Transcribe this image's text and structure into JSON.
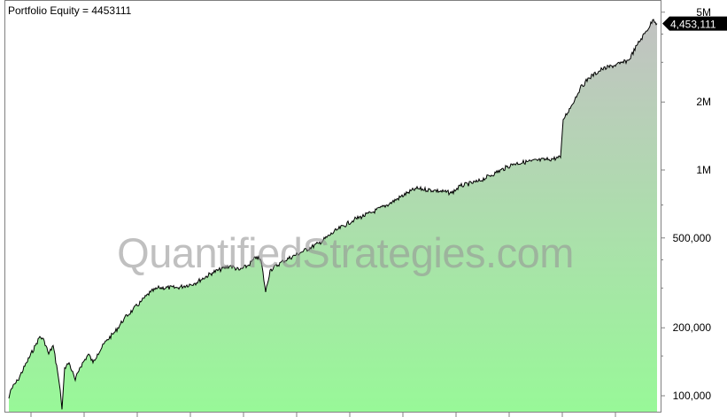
{
  "chart_data": {
    "type": "area",
    "title": "Portfolio Equity = 4453111",
    "yscale": "log",
    "ylim": [
      85000,
      5500000
    ],
    "yticks": [
      100000,
      200000,
      500000,
      1000000,
      2000000,
      5000000
    ],
    "ytick_labels": [
      "100,000",
      "200,000",
      "500,000",
      "1M",
      "2M",
      "5M"
    ],
    "last_value_label": "4,453,111",
    "grid": false,
    "series": [
      {
        "x": [
          0,
          2,
          10,
          20,
          30,
          35,
          40,
          45,
          50,
          55,
          58,
          60,
          63,
          68,
          75,
          80,
          90,
          95,
          100,
          110,
          120,
          130,
          140,
          150,
          160,
          170,
          190,
          210,
          230,
          250,
          260,
          270,
          280,
          285,
          290,
          295,
          310,
          330,
          350,
          370,
          390,
          410,
          430,
          450,
          460,
          480,
          500,
          510,
          530,
          550,
          570,
          590,
          610,
          623,
          626,
          635,
          645,
          655,
          670,
          690,
          700,
          710,
          720,
          728,
          732
        ],
        "values": [
          97300,
          106000,
          117000,
          140000,
          167000,
          183000,
          175000,
          153000,
          167000,
          128000,
          106000,
          87000,
          133000,
          140000,
          117000,
          133000,
          153000,
          140000,
          153000,
          175000,
          192000,
          219000,
          240000,
          263000,
          288000,
          301000,
          301000,
          315000,
          351000,
          377000,
          360000,
          377000,
          413000,
          395000,
          288000,
          360000,
          395000,
          432000,
          473000,
          541000,
          603000,
          648000,
          710000,
          791000,
          827000,
          813000,
          791000,
          850000,
          889000,
          973000,
          1065000,
          1094000,
          1115000,
          1135000,
          1673000,
          1916000,
          2294000,
          2557000,
          2798000,
          2955000,
          3064000,
          3604000,
          4128000,
          4640000,
          4453111
        ]
      }
    ],
    "colors": {
      "line": "#000000",
      "fill_top": "#c2c2c2",
      "fill_bottom": "#98f898",
      "axis": "#808080"
    }
  },
  "watermark": "QuantifiedStrategies.com"
}
